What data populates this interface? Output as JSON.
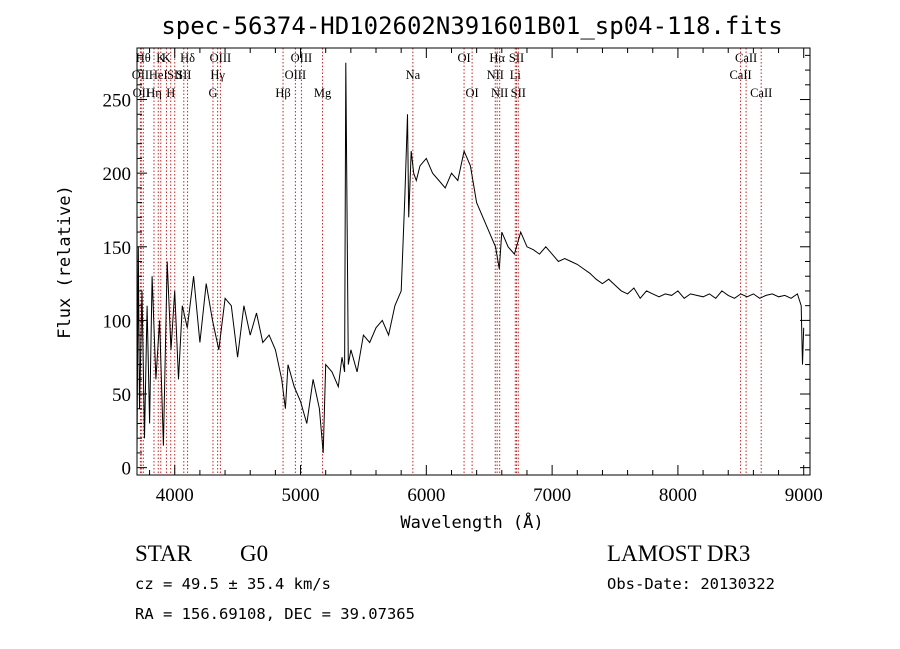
{
  "chart_data": {
    "type": "line",
    "title": "spec-56374-HD102602N391601B01_sp04-118.fits",
    "xlabel": "Wavelength (Å)",
    "ylabel": "Flux (relative)",
    "xlim": [
      3700,
      9050
    ],
    "ylim": [
      -5,
      285
    ],
    "xticks": [
      4000,
      5000,
      6000,
      7000,
      8000,
      9000
    ],
    "yticks": [
      0,
      50,
      100,
      150,
      200,
      250
    ],
    "series": [
      {
        "name": "flux",
        "x": [
          3700,
          3710,
          3720,
          3740,
          3760,
          3780,
          3800,
          3820,
          3850,
          3880,
          3910,
          3940,
          3970,
          4000,
          4030,
          4060,
          4100,
          4150,
          4200,
          4250,
          4300,
          4350,
          4400,
          4450,
          4500,
          4550,
          4600,
          4650,
          4700,
          4750,
          4800,
          4850,
          4880,
          4900,
          4950,
          5000,
          5050,
          5100,
          5150,
          5180,
          5200,
          5250,
          5300,
          5330,
          5350,
          5360,
          5380,
          5400,
          5450,
          5500,
          5550,
          5600,
          5650,
          5700,
          5750,
          5800,
          5830,
          5850,
          5860,
          5880,
          5900,
          5920,
          5950,
          6000,
          6050,
          6100,
          6150,
          6200,
          6250,
          6300,
          6350,
          6400,
          6450,
          6500,
          6550,
          6580,
          6600,
          6650,
          6700,
          6750,
          6800,
          6850,
          6900,
          6950,
          7000,
          7050,
          7100,
          7150,
          7200,
          7250,
          7300,
          7350,
          7400,
          7450,
          7500,
          7550,
          7600,
          7650,
          7700,
          7750,
          7800,
          7850,
          7900,
          7950,
          8000,
          8050,
          8100,
          8150,
          8200,
          8250,
          8300,
          8350,
          8400,
          8450,
          8500,
          8550,
          8600,
          8650,
          8700,
          8750,
          8800,
          8850,
          8900,
          8950,
          8980,
          8990,
          9000
        ],
        "y": [
          10,
          150,
          40,
          120,
          20,
          110,
          30,
          130,
          60,
          100,
          15,
          140,
          80,
          120,
          60,
          110,
          95,
          130,
          85,
          125,
          100,
          80,
          115,
          110,
          75,
          110,
          90,
          105,
          85,
          90,
          80,
          60,
          40,
          70,
          55,
          45,
          30,
          60,
          40,
          10,
          70,
          65,
          55,
          75,
          65,
          275,
          70,
          80,
          65,
          90,
          85,
          95,
          100,
          90,
          110,
          120,
          185,
          240,
          170,
          215,
          200,
          195,
          205,
          210,
          200,
          195,
          190,
          200,
          195,
          215,
          205,
          180,
          170,
          160,
          150,
          135,
          160,
          150,
          145,
          160,
          150,
          148,
          145,
          150,
          145,
          140,
          142,
          140,
          138,
          135,
          132,
          128,
          125,
          128,
          124,
          120,
          118,
          122,
          115,
          120,
          118,
          116,
          118,
          117,
          120,
          115,
          118,
          117,
          116,
          118,
          115,
          120,
          117,
          115,
          118,
          116,
          118,
          115,
          117,
          118,
          116,
          117,
          115,
          118,
          110,
          70,
          95
        ]
      }
    ],
    "reference_lines": [
      {
        "wavelength": 3727,
        "label": "OII",
        "row": 2
      },
      {
        "wavelength": 3734,
        "label": "OII",
        "row": 3
      },
      {
        "wavelength": 3750,
        "label": "Hθ",
        "row": 1
      },
      {
        "wavelength": 3835,
        "label": "Hη",
        "row": 3
      },
      {
        "wavelength": 3869,
        "label": "HeI",
        "row": 2
      },
      {
        "wavelength": 3889,
        "label": "K",
        "row": 1
      },
      {
        "wavelength": 3934,
        "label": "K",
        "row": 1
      },
      {
        "wavelength": 3968,
        "label": "H",
        "row": 3
      },
      {
        "wavelength": 4000,
        "label": "SII",
        "row": 2
      },
      {
        "wavelength": 4102,
        "label": "Hδ",
        "row": 1
      },
      {
        "wavelength": 4072,
        "label": "SII",
        "row": 2
      },
      {
        "wavelength": 4304,
        "label": "G",
        "row": 3
      },
      {
        "wavelength": 4341,
        "label": "Hγ",
        "row": 2
      },
      {
        "wavelength": 4363,
        "label": "OIII",
        "row": 1
      },
      {
        "wavelength": 4861,
        "label": "Hβ",
        "row": 3
      },
      {
        "wavelength": 4959,
        "label": "OIII",
        "row": 2
      },
      {
        "wavelength": 5007,
        "label": "OIII",
        "row": 1
      },
      {
        "wavelength": 5175,
        "label": "Mg",
        "row": 3
      },
      {
        "wavelength": 5893,
        "label": "Na",
        "row": 2
      },
      {
        "wavelength": 6300,
        "label": "OI",
        "row": 1
      },
      {
        "wavelength": 6364,
        "label": "OI",
        "row": 3
      },
      {
        "wavelength": 6548,
        "label": "NII",
        "row": 2
      },
      {
        "wavelength": 6563,
        "label": "Hα",
        "row": 1
      },
      {
        "wavelength": 6583,
        "label": "NII",
        "row": 3
      },
      {
        "wavelength": 6707,
        "label": "Li",
        "row": 2
      },
      {
        "wavelength": 6717,
        "label": "SII",
        "row": 1
      },
      {
        "wavelength": 6731,
        "label": "SII",
        "row": 3
      },
      {
        "wavelength": 8498,
        "label": "CaII",
        "row": 2
      },
      {
        "wavelength": 8542,
        "label": "CaII",
        "row": 1
      },
      {
        "wavelength": 8662,
        "label": "CaII",
        "row": 3
      }
    ],
    "line_color": "#cc2222"
  },
  "info": {
    "class_label": "STAR",
    "subclass": "G0",
    "cz": "cz = 49.5 ± 35.4 km/s",
    "radec": "RA = 156.69108, DEC =  39.07365",
    "survey": "LAMOST DR3",
    "obs_date": "Obs-Date: 20130322"
  }
}
